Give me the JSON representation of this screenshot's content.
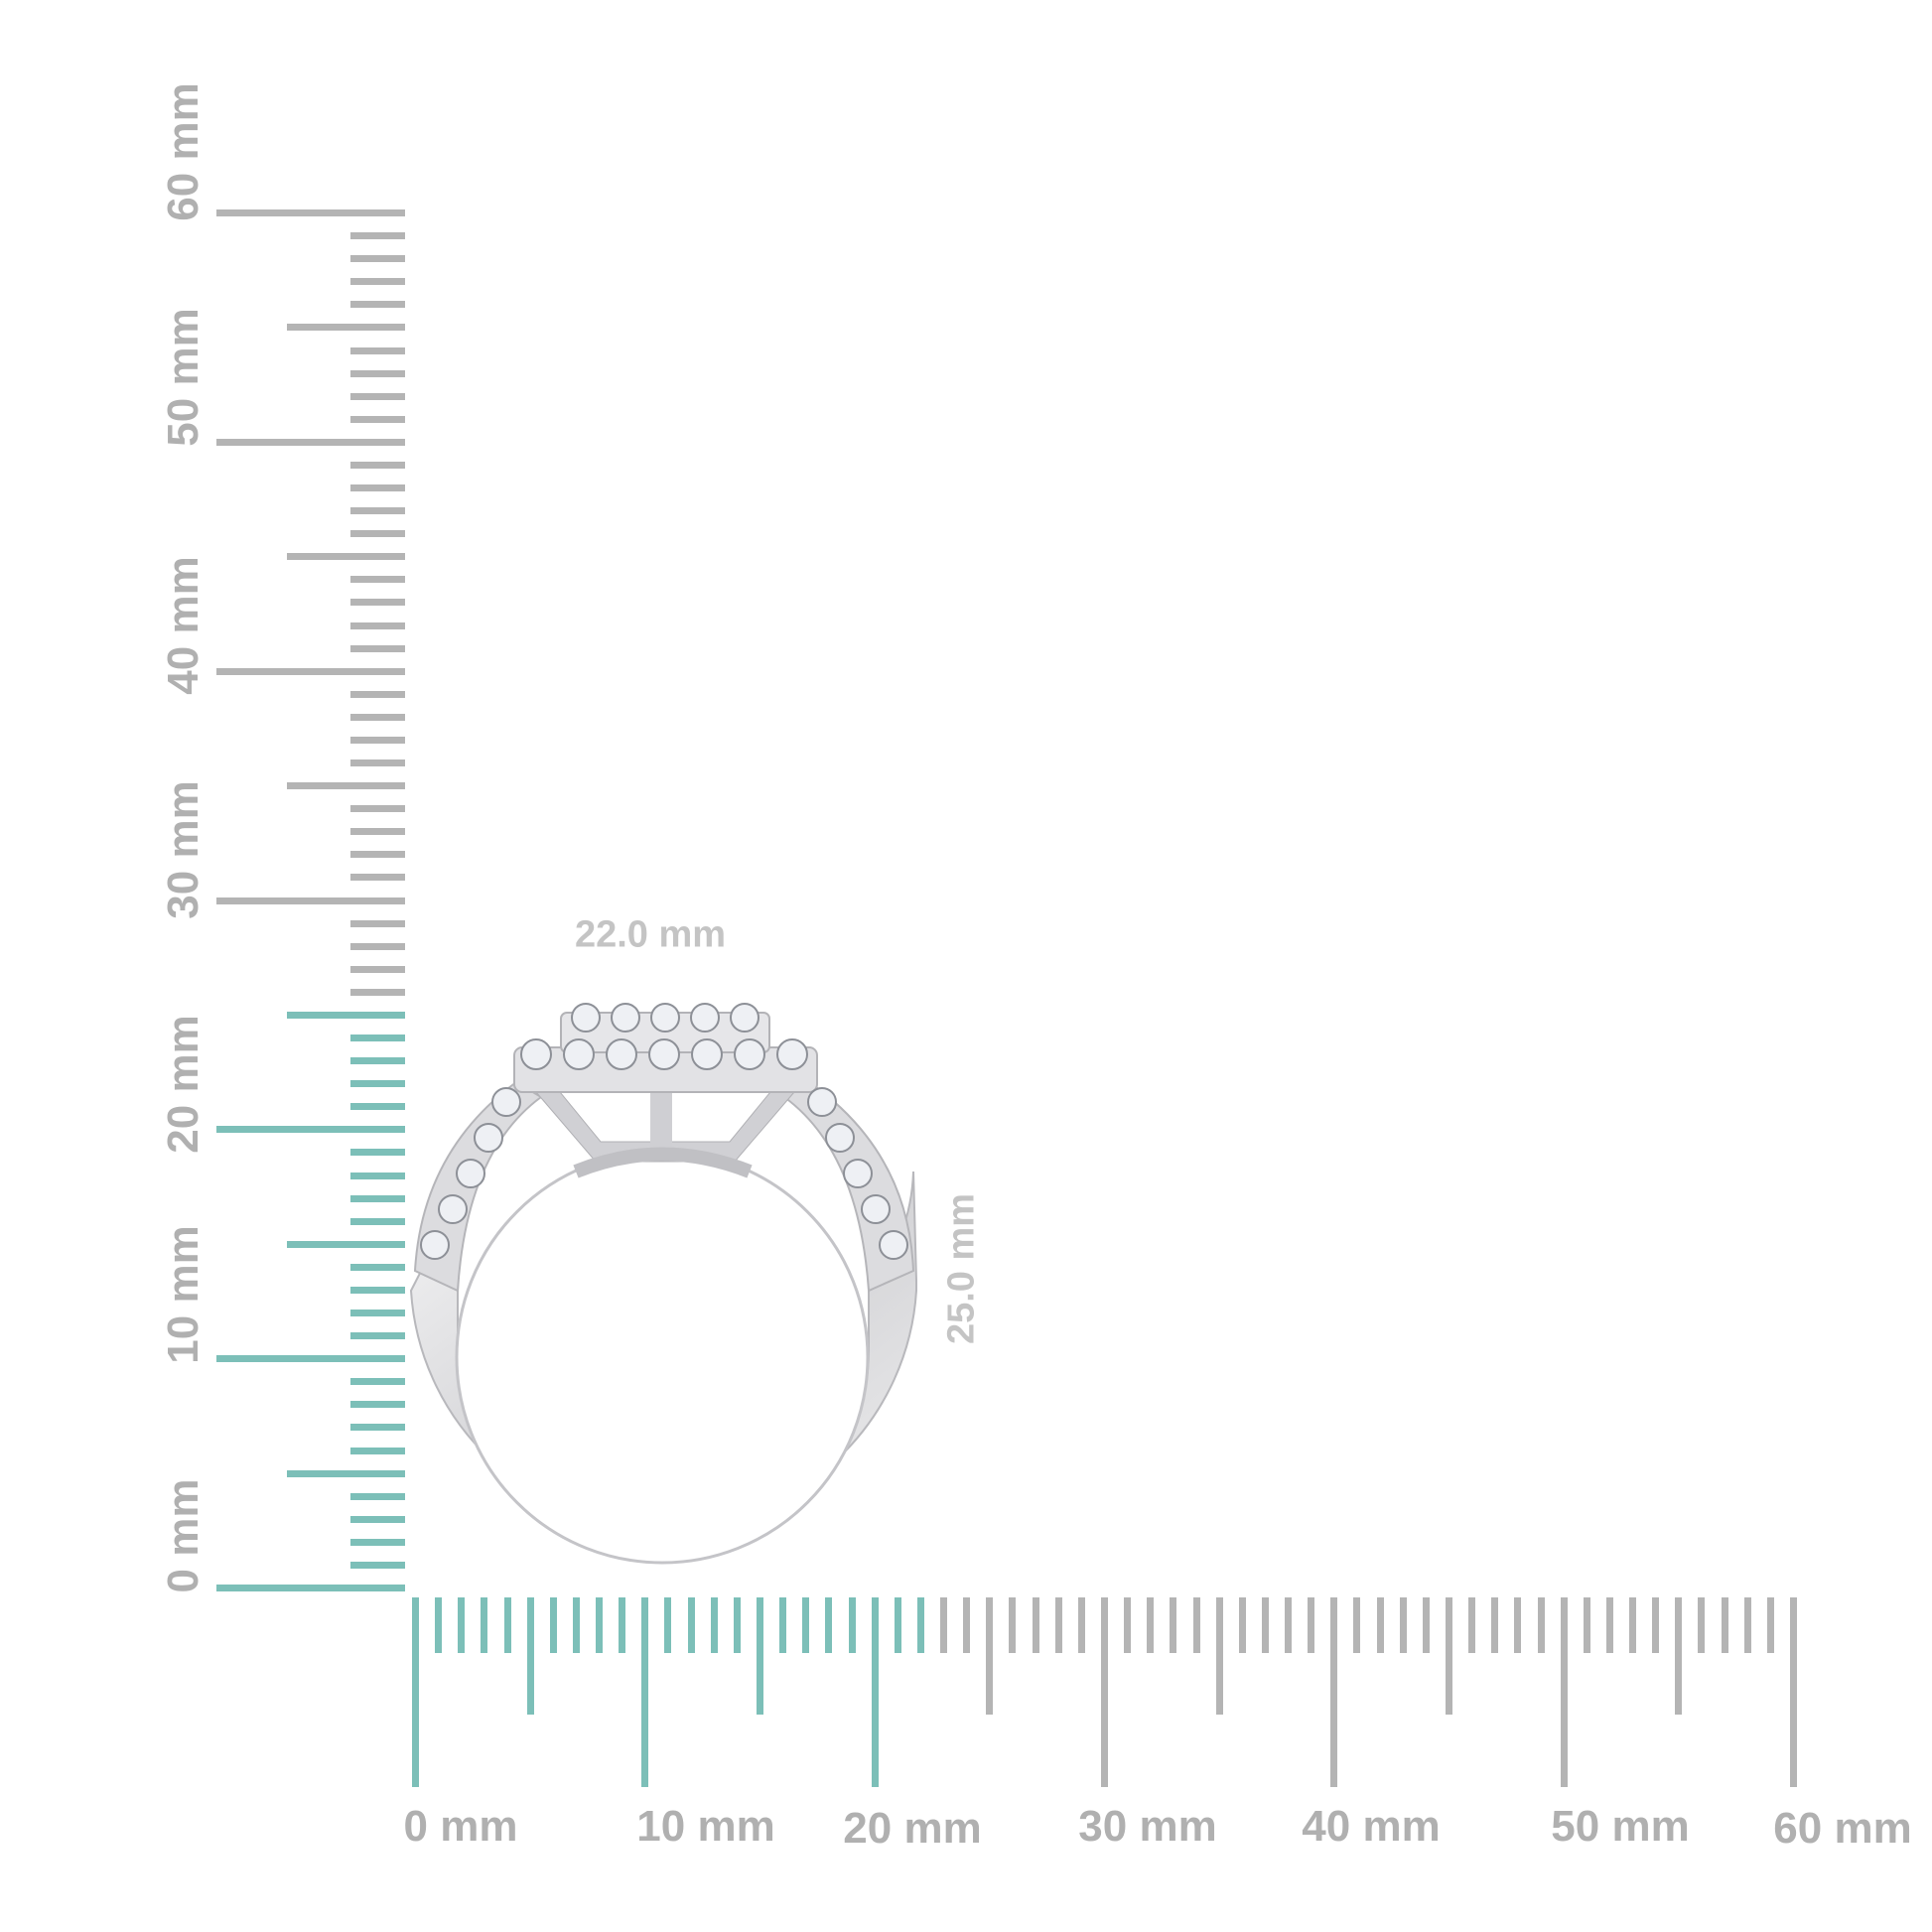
{
  "rulers": {
    "min_mm": 0,
    "max_mm": 60,
    "highlight_color": "#7cbfb8",
    "base_color": "#b4b4b4",
    "horizontal": {
      "highlight_to_mm": 22,
      "labels": [
        "0 mm",
        "10 mm",
        "20 mm",
        "30 mm",
        "40 mm",
        "50 mm",
        "60 mm"
      ]
    },
    "vertical": {
      "highlight_to_mm": 25,
      "labels": [
        "0 mm",
        "10 mm",
        "20 mm",
        "30 mm",
        "40 mm",
        "50 mm",
        "60 mm"
      ]
    }
  },
  "dimensions": {
    "width_label": "22.0 mm",
    "height_label": "25.0 mm"
  },
  "product": {
    "metal_color": "#d9d9db"
  }
}
